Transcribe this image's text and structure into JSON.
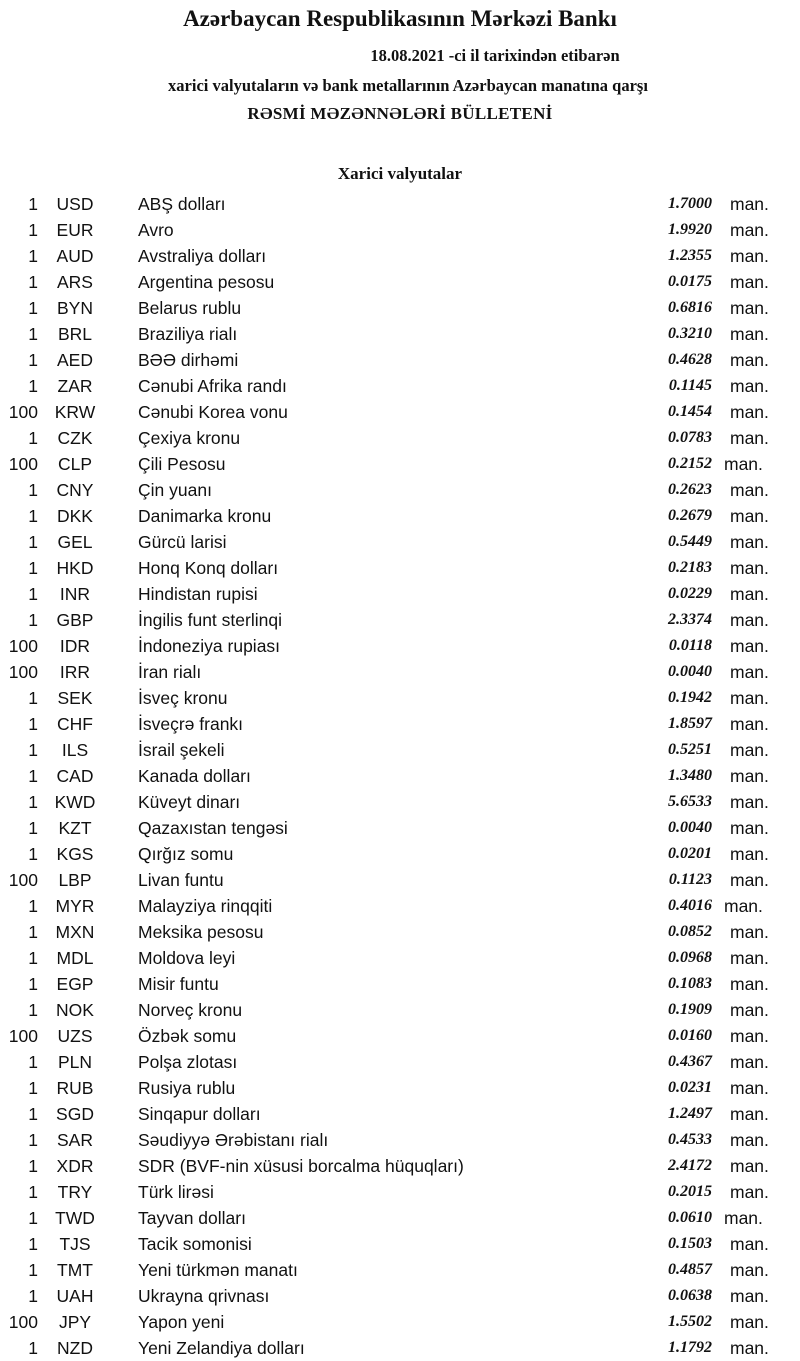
{
  "header": {
    "bank": "Azərbaycan Respublikasının Mərkəzi Bankı",
    "date_line": "18.08.2021 -ci il tarixindən etibarən",
    "subtitle": "xarici valyutaların və bank metallarının Azərbaycan manatına qarşı",
    "title": "RƏSMİ MƏZƏNNƏLƏRİ BÜLLETENİ"
  },
  "section": "Xarici valyutalar",
  "unit": "man.",
  "rates": [
    {
      "qty": "1",
      "code": "USD",
      "name": "ABŞ dolları",
      "value": "1.7000"
    },
    {
      "qty": "1",
      "code": "EUR",
      "name": "Avro",
      "value": "1.9920"
    },
    {
      "qty": "1",
      "code": "AUD",
      "name": "Avstraliya dolları",
      "value": "1.2355"
    },
    {
      "qty": "1",
      "code": "ARS",
      "name": "Argentina pesosu",
      "value": "0.0175"
    },
    {
      "qty": "1",
      "code": "BYN",
      "name": "Belarus rublu",
      "value": "0.6816"
    },
    {
      "qty": "1",
      "code": "BRL",
      "name": "Braziliya rialı",
      "value": "0.3210"
    },
    {
      "qty": "1",
      "code": "AED",
      "name": "BƏƏ dirhəmi",
      "value": "0.4628"
    },
    {
      "qty": "1",
      "code": "ZAR",
      "name": "Cənubi Afrika randı",
      "value": "0.1145"
    },
    {
      "qty": "100",
      "code": "KRW",
      "name": "Cənubi Korea vonu",
      "value": "0.1454"
    },
    {
      "qty": "1",
      "code": "CZK",
      "name": "Çexiya kronu",
      "value": "0.0783"
    },
    {
      "qty": "100",
      "code": "CLP",
      "name": "Çili Pesosu",
      "value": "0.2152"
    },
    {
      "qty": "1",
      "code": "CNY",
      "name": "Çin yuanı",
      "value": "0.2623"
    },
    {
      "qty": "1",
      "code": "DKK",
      "name": "Danimarka kronu",
      "value": "0.2679"
    },
    {
      "qty": "1",
      "code": "GEL",
      "name": "Gürcü larisi",
      "value": "0.5449"
    },
    {
      "qty": "1",
      "code": "HKD",
      "name": "Honq Konq dolları",
      "value": "0.2183"
    },
    {
      "qty": "1",
      "code": "INR",
      "name": "Hindistan rupisi",
      "value": "0.0229"
    },
    {
      "qty": "1",
      "code": "GBP",
      "name": "İngilis funt sterlinqi",
      "value": "2.3374"
    },
    {
      "qty": "100",
      "code": "IDR",
      "name": "İndoneziya rupiası",
      "value": "0.0118"
    },
    {
      "qty": "100",
      "code": "IRR",
      "name": "İran rialı",
      "value": "0.0040"
    },
    {
      "qty": "1",
      "code": "SEK",
      "name": "İsveç kronu",
      "value": "0.1942"
    },
    {
      "qty": "1",
      "code": "CHF",
      "name": "İsveçrə frankı",
      "value": "1.8597"
    },
    {
      "qty": "1",
      "code": "ILS",
      "name": "İsrail şekeli",
      "value": "0.5251"
    },
    {
      "qty": "1",
      "code": "CAD",
      "name": "Kanada dolları",
      "value": "1.3480"
    },
    {
      "qty": "1",
      "code": "KWD",
      "name": "Küveyt dinarı",
      "value": "5.6533"
    },
    {
      "qty": "1",
      "code": "KZT",
      "name": "Qazaxıstan tengəsi",
      "value": "0.0040"
    },
    {
      "qty": "1",
      "code": "KGS",
      "name": "Qırğız somu",
      "value": "0.0201"
    },
    {
      "qty": "100",
      "code": "LBP",
      "name": "Livan funtu",
      "value": "0.1123"
    },
    {
      "qty": "1",
      "code": "MYR",
      "name": "Malayziya rinqqiti",
      "value": "0.4016"
    },
    {
      "qty": "1",
      "code": "MXN",
      "name": "Meksika pesosu",
      "value": "0.0852"
    },
    {
      "qty": "1",
      "code": "MDL",
      "name": "Moldova leyi",
      "value": "0.0968"
    },
    {
      "qty": "1",
      "code": "EGP",
      "name": "Misir funtu",
      "value": "0.1083"
    },
    {
      "qty": "1",
      "code": "NOK",
      "name": "Norveç kronu",
      "value": "0.1909"
    },
    {
      "qty": "100",
      "code": "UZS",
      "name": "Özbək somu",
      "value": "0.0160"
    },
    {
      "qty": "1",
      "code": "PLN",
      "name": "Polşa zlotası",
      "value": "0.4367"
    },
    {
      "qty": "1",
      "code": "RUB",
      "name": "Rusiya rublu",
      "value": "0.0231"
    },
    {
      "qty": "1",
      "code": "SGD",
      "name": "Sinqapur dolları",
      "value": "1.2497"
    },
    {
      "qty": "1",
      "code": "SAR",
      "name": "Səudiyyə Ərəbistanı rialı",
      "value": "0.4533"
    },
    {
      "qty": "1",
      "code": "XDR",
      "name": "SDR (BVF-nin xüsusi borcalma hüquqları)",
      "value": "2.4172"
    },
    {
      "qty": "1",
      "code": "TRY",
      "name": "Türk lirəsi",
      "value": "0.2015"
    },
    {
      "qty": "1",
      "code": "TWD",
      "name": "Tayvan dolları",
      "value": "0.0610"
    },
    {
      "qty": "1",
      "code": "TJS",
      "name": "Tacik somonisi",
      "value": "0.1503"
    },
    {
      "qty": "1",
      "code": "TMT",
      "name": "Yeni türkmən manatı",
      "value": "0.4857"
    },
    {
      "qty": "1",
      "code": "UAH",
      "name": "Ukrayna qrivnası",
      "value": "0.0638"
    },
    {
      "qty": "100",
      "code": "JPY",
      "name": "Yapon yeni",
      "value": "1.5502"
    },
    {
      "qty": "1",
      "code": "NZD",
      "name": "Yeni Zelandiya dolları",
      "value": "1.1792"
    }
  ]
}
